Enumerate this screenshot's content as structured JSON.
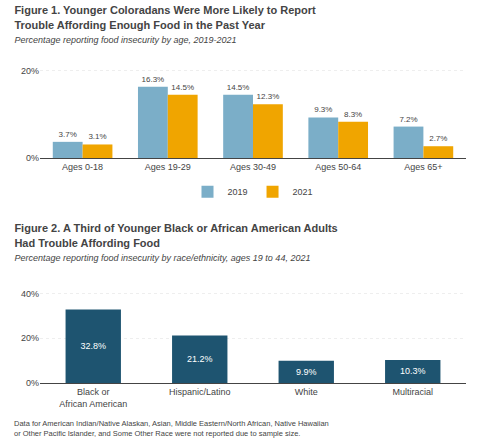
{
  "chart_data": [
    {
      "type": "bar",
      "title": "Figure 1. Younger Coloradans Were More Likely to Report\nTrouble Affording Enough Food in the Past Year",
      "subtitle": "Percentage reporting food insecurity by age, 2019-2021",
      "categories": [
        "Ages 0-18",
        "Ages 19-29",
        "Ages 30-49",
        "Ages 50-64",
        "Ages 65+"
      ],
      "series": [
        {
          "name": "2019",
          "color": "#7baec8",
          "values": [
            3.7,
            16.3,
            14.5,
            9.3,
            7.2
          ],
          "value_labels": [
            "3.7%",
            "16.3%",
            "14.5%",
            "9.3%",
            "7.2%"
          ]
        },
        {
          "name": "2021",
          "color": "#f0a500",
          "values": [
            3.1,
            14.5,
            12.3,
            8.3,
            2.7
          ],
          "value_labels": [
            "3.1%",
            "14.5%",
            "12.3%",
            "8.3%",
            "2.7%"
          ]
        }
      ],
      "ylim": [
        0,
        22
      ],
      "yticks": [
        {
          "value": 0,
          "label": "0%"
        },
        {
          "value": 20,
          "label": "20%"
        }
      ],
      "grid": true,
      "data_labels": true,
      "legend": "bottom"
    },
    {
      "type": "bar",
      "title": "Figure 2. A Third of Younger Black or African American Adults\nHad Trouble Affording Food",
      "subtitle": "Percentage reporting food insecurity by race/ethnicity, ages 19 to 44, 2021",
      "categories": [
        "Black or\nAfrican American",
        "Hispanic/Latino",
        "White",
        "Multiracial"
      ],
      "values": [
        32.8,
        21.2,
        9.9,
        10.3
      ],
      "value_labels": [
        "32.8%",
        "21.2%",
        "9.9%",
        "10.3%"
      ],
      "color": "#1e5470",
      "ylim": [
        0,
        46
      ],
      "yticks": [
        {
          "value": 0,
          "label": "0%"
        },
        {
          "value": 20,
          "label": "20%"
        },
        {
          "value": 40,
          "label": "40%"
        }
      ],
      "grid": true,
      "data_labels": true,
      "footnote": "Data for American Indian/Native Alaskan, Asian, Middle Eastern/North African, Native Hawaiian\nor Other Pacific Islander, and Some Other Race were not reported due to sample size."
    }
  ]
}
